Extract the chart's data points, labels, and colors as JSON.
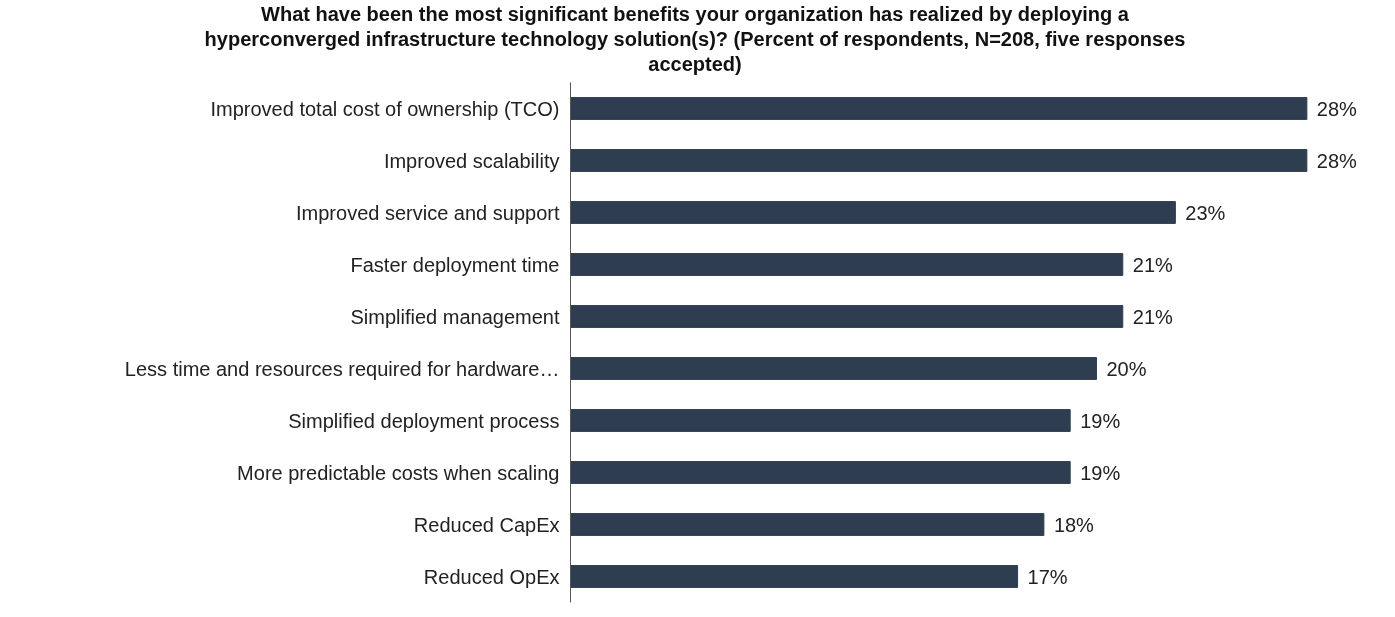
{
  "chart_data": {
    "type": "bar",
    "orientation": "horizontal",
    "title": "What have been the most significant benefits your organization has realized by deploying a hyperconverged infrastructure technology solution(s)? (Percent of respondents, N=208, five responses accepted)",
    "categories": [
      "Improved total cost of ownership (TCO)",
      "Improved scalability",
      "Improved service and support",
      "Faster deployment time",
      "Simplified management",
      "Less time and resources required for hardware…",
      "Simplified deployment process",
      "More predictable costs when scaling",
      "Reduced CapEx",
      "Reduced OpEx"
    ],
    "values": [
      28,
      28,
      23,
      21,
      21,
      20,
      19,
      19,
      18,
      17
    ],
    "value_labels": [
      "28%",
      "28%",
      "23%",
      "21%",
      "21%",
      "20%",
      "19%",
      "19%",
      "18%",
      "17%"
    ],
    "color": "#2e3d4f",
    "grid": false
  }
}
